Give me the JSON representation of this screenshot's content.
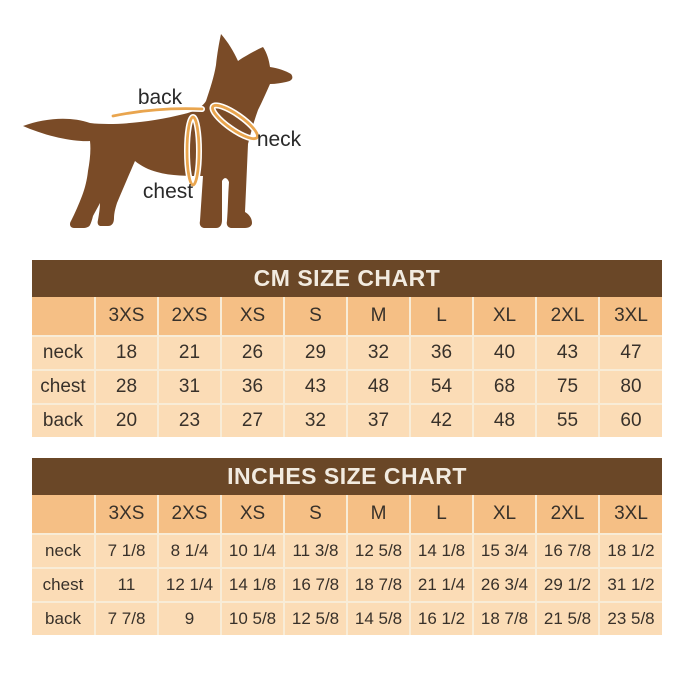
{
  "diagram": {
    "labels": {
      "back": "back",
      "neck": "neck",
      "chest": "chest"
    },
    "colors": {
      "dog_body": "#7a4b27",
      "measure_line": "#e9a54e",
      "label_text": "#2a2a2a"
    }
  },
  "tables": {
    "cm": {
      "title": "CM SIZE CHART",
      "sizes": [
        "3XS",
        "2XS",
        "XS",
        "S",
        "M",
        "L",
        "XL",
        "2XL",
        "3XL"
      ],
      "rows": [
        {
          "label": "neck",
          "values": [
            "18",
            "21",
            "26",
            "29",
            "32",
            "36",
            "40",
            "43",
            "47"
          ]
        },
        {
          "label": "chest",
          "values": [
            "28",
            "31",
            "36",
            "43",
            "48",
            "54",
            "68",
            "75",
            "80"
          ]
        },
        {
          "label": "back",
          "values": [
            "20",
            "23",
            "27",
            "32",
            "37",
            "42",
            "48",
            "55",
            "60"
          ]
        }
      ]
    },
    "inches": {
      "title": "INCHES SIZE CHART",
      "sizes": [
        "3XS",
        "2XS",
        "XS",
        "S",
        "M",
        "L",
        "XL",
        "2XL",
        "3XL"
      ],
      "rows": [
        {
          "label": "neck",
          "values": [
            "7 1/8",
            "8 1/4",
            "10 1/4",
            "11 3/8",
            "12 5/8",
            "14 1/8",
            "15 3/4",
            "16 7/8",
            "18 1/2"
          ]
        },
        {
          "label": "chest",
          "values": [
            "11",
            "12 1/4",
            "14 1/8",
            "16 7/8",
            "18 7/8",
            "21 1/4",
            "26 3/4",
            "29 1/2",
            "31 1/2"
          ]
        },
        {
          "label": "back",
          "values": [
            "7 7/8",
            "9",
            "10 5/8",
            "12 5/8",
            "14 5/8",
            "16 1/2",
            "18 7/8",
            "21 5/8",
            "23 5/8"
          ]
        }
      ]
    }
  },
  "theme_colors": {
    "header_bar": "#6a4727",
    "header_bar_text": "#f2ebe0",
    "label_cell": "#f5bf85",
    "value_cell": "#fbdcb6",
    "gridline": "#f8ecd7",
    "cell_text": "#38312a"
  },
  "chart_data": [
    {
      "type": "table",
      "title": "CM SIZE CHART",
      "columns": [
        "",
        "3XS",
        "2XS",
        "XS",
        "S",
        "M",
        "L",
        "XL",
        "2XL",
        "3XL"
      ],
      "rows": [
        [
          "neck",
          18,
          21,
          26,
          29,
          32,
          36,
          40,
          43,
          47
        ],
        [
          "chest",
          28,
          31,
          36,
          43,
          48,
          54,
          68,
          75,
          80
        ],
        [
          "back",
          20,
          23,
          27,
          32,
          37,
          42,
          48,
          55,
          60
        ]
      ],
      "units": "cm"
    },
    {
      "type": "table",
      "title": "INCHES SIZE CHART",
      "columns": [
        "",
        "3XS",
        "2XS",
        "XS",
        "S",
        "M",
        "L",
        "XL",
        "2XL",
        "3XL"
      ],
      "rows": [
        [
          "neck",
          "7 1/8",
          "8 1/4",
          "10 1/4",
          "11 3/8",
          "12 5/8",
          "14 1/8",
          "15 3/4",
          "16 7/8",
          "18 1/2"
        ],
        [
          "chest",
          "11",
          "12 1/4",
          "14 1/8",
          "16 7/8",
          "18 7/8",
          "21 1/4",
          "26 3/4",
          "29 1/2",
          "31 1/2"
        ],
        [
          "back",
          "7 7/8",
          "9",
          "10 5/8",
          "12 5/8",
          "14 5/8",
          "16 1/2",
          "18 7/8",
          "21 5/8",
          "23 5/8"
        ]
      ],
      "units": "inches"
    }
  ]
}
